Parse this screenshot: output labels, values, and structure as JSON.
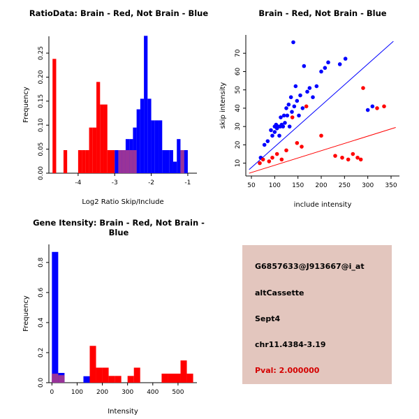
{
  "window": {
    "background": "#ffffff"
  },
  "colors": {
    "red": "#ff0000",
    "blue": "#0000ff",
    "purple": "#993399",
    "axis": "#000000",
    "info_box_bg": "#e3c6be",
    "pval_red": "#d40000"
  },
  "chart_data": [
    {
      "id": "ratio_hist",
      "type": "bar",
      "title": "RatioData: Brain - Red, Not Brain - Blue",
      "xlabel": "Log2 Ratio Skip/Include",
      "ylabel": "Frequency",
      "xlim": [
        -4.8,
        -0.75
      ],
      "ylim": [
        0,
        0.285
      ],
      "xticks": [
        -4,
        -3,
        -2,
        -1
      ],
      "xtick_labels": [
        "-4",
        "-3",
        "-2",
        "-1"
      ],
      "yticks": [
        0,
        0.05,
        0.1,
        0.15,
        0.2,
        0.25
      ],
      "ytick_labels": [
        "0.00",
        "0.05",
        "0.10",
        "0.15",
        "0.20",
        "0.25"
      ],
      "bin_width": 0.1,
      "legend_note": "Brain - Red, Not Brain - Blue",
      "series": [
        {
          "name": "brain",
          "color": "red",
          "bins": [
            [
              -4.7,
              0.238
            ],
            [
              -4.4,
              0.048
            ],
            [
              -4.0,
              0.048
            ],
            [
              -3.9,
              0.048
            ],
            [
              -3.8,
              0.048
            ],
            [
              -3.7,
              0.095
            ],
            [
              -3.6,
              0.095
            ],
            [
              -3.5,
              0.19
            ],
            [
              -3.4,
              0.143
            ],
            [
              -3.3,
              0.143
            ],
            [
              -3.2,
              0.048
            ],
            [
              -3.1,
              0.048
            ],
            [
              -2.9,
              0.048
            ],
            [
              -2.7,
              0.048
            ],
            [
              -2.5,
              0.048
            ],
            [
              -1.2,
              0.048
            ]
          ]
        },
        {
          "name": "not_brain",
          "color": "blue",
          "bins": [
            [
              -3.0,
              0.048
            ],
            [
              -2.9,
              0.048
            ],
            [
              -2.8,
              0.048
            ],
            [
              -2.7,
              0.071
            ],
            [
              -2.6,
              0.071
            ],
            [
              -2.5,
              0.095
            ],
            [
              -2.4,
              0.133
            ],
            [
              -2.3,
              0.155
            ],
            [
              -2.2,
              0.286
            ],
            [
              -2.1,
              0.155
            ],
            [
              -2.0,
              0.11
            ],
            [
              -1.9,
              0.11
            ],
            [
              -1.8,
              0.11
            ],
            [
              -1.7,
              0.048
            ],
            [
              -1.6,
              0.048
            ],
            [
              -1.5,
              0.048
            ],
            [
              -1.4,
              0.024
            ],
            [
              -1.3,
              0.071
            ],
            [
              -1.2,
              0.048
            ],
            [
              -1.1,
              0.048
            ]
          ]
        },
        {
          "name": "overlap",
          "color": "purple",
          "bins": [
            [
              -2.9,
              0.048
            ],
            [
              -2.8,
              0.048
            ],
            [
              -2.7,
              0.048
            ],
            [
              -2.6,
              0.048
            ],
            [
              -2.5,
              0.048
            ],
            [
              -1.2,
              0.048
            ]
          ]
        }
      ]
    },
    {
      "id": "intensity_scatter",
      "type": "scatter",
      "title": "Brain - Red, Not Brain - Blue",
      "xlabel": "include intensity",
      "ylabel": "skip intensity",
      "xlim": [
        38,
        368
      ],
      "ylim": [
        3,
        80
      ],
      "xticks": [
        50,
        100,
        150,
        200,
        250,
        300,
        350
      ],
      "xtick_labels": [
        "50",
        "100",
        "150",
        "200",
        "250",
        "300",
        "350"
      ],
      "yticks": [
        10,
        20,
        30,
        40,
        50,
        60,
        70
      ],
      "ytick_labels": [
        "10",
        "20",
        "30",
        "40",
        "50",
        "60",
        "70"
      ],
      "series": [
        {
          "name": "not_brain",
          "color": "blue",
          "line": {
            "x1": 45,
            "y1": 6.5,
            "x2": 355,
            "y2": 76.5
          },
          "points": [
            [
              70,
              13
            ],
            [
              78,
              20
            ],
            [
              85,
              22
            ],
            [
              92,
              28
            ],
            [
              95,
              25
            ],
            [
              100,
              30
            ],
            [
              100,
              27
            ],
            [
              103,
              31
            ],
            [
              105,
              29
            ],
            [
              108,
              30
            ],
            [
              110,
              25
            ],
            [
              112,
              30
            ],
            [
              113,
              35
            ],
            [
              115,
              31
            ],
            [
              118,
              30
            ],
            [
              120,
              36
            ],
            [
              122,
              32
            ],
            [
              125,
              40
            ],
            [
              127,
              36
            ],
            [
              130,
              42
            ],
            [
              132,
              30
            ],
            [
              135,
              46
            ],
            [
              137,
              38
            ],
            [
              140,
              76
            ],
            [
              142,
              41
            ],
            [
              145,
              52
            ],
            [
              148,
              44
            ],
            [
              152,
              36
            ],
            [
              155,
              47
            ],
            [
              160,
              40
            ],
            [
              163,
              63
            ],
            [
              170,
              49
            ],
            [
              175,
              51
            ],
            [
              182,
              46
            ],
            [
              190,
              52
            ],
            [
              200,
              60
            ],
            [
              208,
              62
            ],
            [
              215,
              65
            ],
            [
              240,
              64
            ],
            [
              252,
              67
            ],
            [
              300,
              39
            ],
            [
              310,
              41
            ]
          ]
        },
        {
          "name": "brain",
          "color": "red",
          "line": {
            "x1": 45,
            "y1": 4.5,
            "x2": 360,
            "y2": 29.5
          },
          "points": [
            [
              68,
              10
            ],
            [
              75,
              12
            ],
            [
              88,
              11
            ],
            [
              95,
              13
            ],
            [
              105,
              15
            ],
            [
              115,
              12
            ],
            [
              125,
              17
            ],
            [
              138,
              35
            ],
            [
              148,
              21
            ],
            [
              158,
              19
            ],
            [
              168,
              41
            ],
            [
              200,
              25
            ],
            [
              230,
              14
            ],
            [
              245,
              13
            ],
            [
              258,
              12
            ],
            [
              268,
              15
            ],
            [
              278,
              13
            ],
            [
              285,
              12
            ],
            [
              290,
              51
            ],
            [
              320,
              40
            ],
            [
              335,
              41
            ]
          ]
        }
      ]
    },
    {
      "id": "gene_intensity_hist",
      "type": "bar",
      "title": "Gene Itensity: Brain - Red, Not Brain - Blue",
      "xlabel": "Intensity",
      "ylabel": "Frequency",
      "xlim": [
        -12,
        575
      ],
      "ylim": [
        0,
        0.92
      ],
      "xticks": [
        0,
        100,
        200,
        300,
        400,
        500
      ],
      "xtick_labels": [
        "0",
        "100",
        "200",
        "300",
        "400",
        "500"
      ],
      "yticks": [
        0,
        0.2,
        0.4,
        0.6,
        0.8
      ],
      "ytick_labels": [
        "0.0",
        "0.2",
        "0.4",
        "0.6",
        "0.8"
      ],
      "bin_width": 25,
      "series": [
        {
          "name": "brain",
          "color": "red",
          "bins": [
            [
              0,
              0.06
            ],
            [
              150,
              0.245
            ],
            [
              175,
              0.1
            ],
            [
              200,
              0.1
            ],
            [
              225,
              0.045
            ],
            [
              250,
              0.045
            ],
            [
              300,
              0.045
            ],
            [
              325,
              0.1
            ],
            [
              435,
              0.06
            ],
            [
              460,
              0.06
            ],
            [
              485,
              0.06
            ],
            [
              510,
              0.148
            ],
            [
              535,
              0.06
            ]
          ]
        },
        {
          "name": "not_brain",
          "color": "blue",
          "bins": [
            [
              0,
              0.87
            ],
            [
              25,
              0.065
            ],
            [
              125,
              0.043
            ]
          ]
        },
        {
          "name": "overlap",
          "color": "purple",
          "bins": [
            [
              0,
              0.06
            ],
            [
              25,
              0.05
            ]
          ]
        }
      ]
    }
  ],
  "info_box": {
    "probe_id": "G6857633@J913667@i_at",
    "event_type": "altCassette",
    "gene": "Sept4",
    "location": "chr11.4384-3.19",
    "pval": "Pval: 2.000000"
  }
}
